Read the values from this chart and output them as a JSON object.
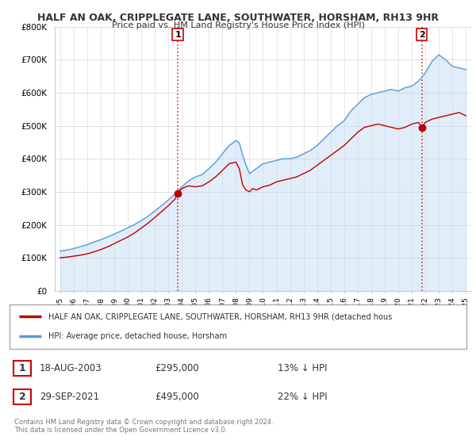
{
  "title1": "HALF AN OAK, CRIPPLEGATE LANE, SOUTHWATER, HORSHAM, RH13 9HR",
  "title2": "Price paid vs. HM Land Registry's House Price Index (HPI)",
  "ylim": [
    0,
    800000
  ],
  "yticks": [
    0,
    100000,
    200000,
    300000,
    400000,
    500000,
    600000,
    700000,
    800000
  ],
  "ytick_labels": [
    "£0",
    "£100K",
    "£200K",
    "£300K",
    "£400K",
    "£500K",
    "£600K",
    "£700K",
    "£800K"
  ],
  "hpi_color": "#5b9bd5",
  "hpi_fill_color": "#c5ddf4",
  "price_color": "#c00000",
  "marker_color": "#c00000",
  "purchase1_date": 2003.7,
  "purchase1_price": 295000,
  "purchase2_date": 2021.75,
  "purchase2_price": 495000,
  "legend_line1": "HALF AN OAK, CRIPPLEGATE LANE, SOUTHWATER, HORSHAM, RH13 9HR (detached hous",
  "legend_line2": "HPI: Average price, detached house, Horsham",
  "footnote1": "Contains HM Land Registry data © Crown copyright and database right 2024.",
  "footnote2": "This data is licensed under the Open Government Licence v3.0.",
  "background_color": "#ffffff",
  "grid_color": "#dddddd",
  "hpi_years": [
    1995.0,
    1995.083,
    1995.167,
    1995.25,
    1995.333,
    1995.417,
    1995.5,
    1995.583,
    1995.667,
    1995.75,
    1995.833,
    1995.917,
    1996.0,
    1996.083,
    1996.167,
    1996.25,
    1996.333,
    1996.417,
    1996.5,
    1996.583,
    1996.667,
    1996.75,
    1996.833,
    1996.917,
    1997.0,
    1997.5,
    1998.0,
    1998.5,
    1999.0,
    1999.5,
    2000.0,
    2000.5,
    2001.0,
    2001.5,
    2002.0,
    2002.5,
    2003.0,
    2003.5,
    2004.0,
    2004.5,
    2005.0,
    2005.5,
    2006.0,
    2006.5,
    2007.0,
    2007.5,
    2008.0,
    2008.25,
    2008.5,
    2008.75,
    2009.0,
    2009.5,
    2010.0,
    2010.5,
    2011.0,
    2011.5,
    2012.0,
    2012.5,
    2013.0,
    2013.5,
    2014.0,
    2014.5,
    2015.0,
    2015.5,
    2016.0,
    2016.5,
    2017.0,
    2017.5,
    2018.0,
    2018.5,
    2019.0,
    2019.5,
    2020.0,
    2020.5,
    2021.0,
    2021.5,
    2022.0,
    2022.5,
    2023.0,
    2023.5,
    2024.0,
    2024.5,
    2025.0
  ],
  "hpi_values": [
    120000,
    121000,
    122000,
    121500,
    122500,
    123000,
    124000,
    124500,
    125000,
    126000,
    126500,
    127000,
    128000,
    129000,
    130000,
    131000,
    132000,
    133000,
    134000,
    135000,
    136000,
    137000,
    138000,
    139000,
    140000,
    148000,
    155000,
    163000,
    172000,
    181000,
    191000,
    201000,
    213000,
    226000,
    242000,
    258000,
    275000,
    293000,
    315000,
    333000,
    345000,
    352000,
    370000,
    390000,
    415000,
    440000,
    455000,
    448000,
    410000,
    380000,
    355000,
    370000,
    385000,
    390000,
    395000,
    400000,
    400000,
    405000,
    415000,
    425000,
    440000,
    460000,
    480000,
    500000,
    515000,
    545000,
    565000,
    585000,
    595000,
    600000,
    605000,
    610000,
    605000,
    615000,
    620000,
    635000,
    660000,
    695000,
    715000,
    700000,
    680000,
    675000,
    670000
  ],
  "red_years": [
    1995.0,
    1995.5,
    1996.0,
    1996.5,
    1997.0,
    1997.5,
    1998.0,
    1998.5,
    1999.0,
    1999.5,
    2000.0,
    2000.5,
    2001.0,
    2001.5,
    2002.0,
    2002.5,
    2003.0,
    2003.5,
    2003.7,
    2004.0,
    2004.5,
    2005.0,
    2005.5,
    2006.0,
    2006.5,
    2007.0,
    2007.5,
    2008.0,
    2008.25,
    2008.5,
    2008.75,
    2009.0,
    2009.25,
    2009.5,
    2010.0,
    2010.5,
    2011.0,
    2011.5,
    2012.0,
    2012.5,
    2013.0,
    2013.5,
    2014.0,
    2014.5,
    2015.0,
    2015.5,
    2016.0,
    2016.5,
    2017.0,
    2017.5,
    2018.0,
    2018.5,
    2019.0,
    2019.5,
    2020.0,
    2020.5,
    2021.0,
    2021.5,
    2021.75,
    2022.0,
    2022.5,
    2023.0,
    2023.5,
    2024.0,
    2024.5,
    2025.0
  ],
  "red_values": [
    100000,
    102000,
    105000,
    108000,
    112000,
    118000,
    125000,
    133000,
    143000,
    153000,
    163000,
    175000,
    190000,
    205000,
    222000,
    240000,
    258000,
    278000,
    295000,
    310000,
    318000,
    315000,
    318000,
    330000,
    345000,
    365000,
    385000,
    390000,
    370000,
    320000,
    305000,
    300000,
    310000,
    305000,
    315000,
    320000,
    330000,
    335000,
    340000,
    345000,
    355000,
    365000,
    380000,
    395000,
    410000,
    425000,
    440000,
    460000,
    480000,
    495000,
    500000,
    505000,
    500000,
    495000,
    490000,
    495000,
    505000,
    510000,
    495000,
    510000,
    520000,
    525000,
    530000,
    535000,
    540000,
    530000
  ]
}
